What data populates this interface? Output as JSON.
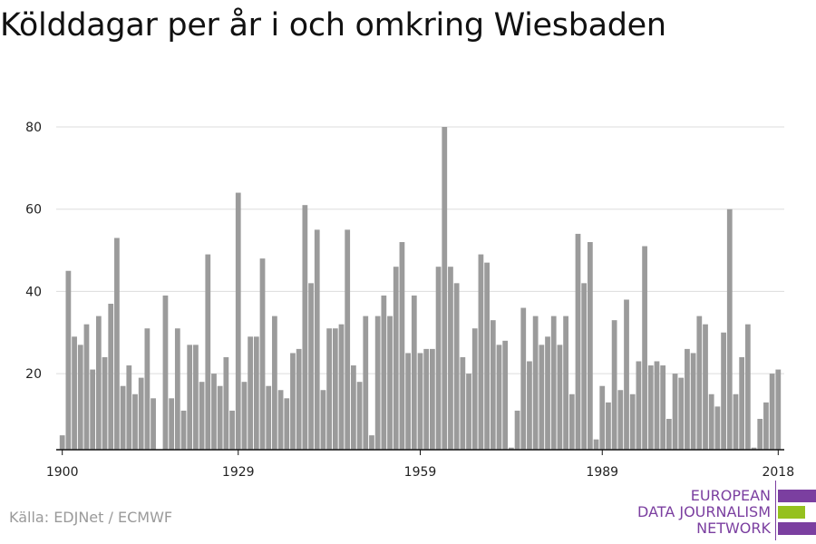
{
  "title": "Kölddagar per år i och omkring Wiesbaden",
  "source": "Källa: EDJNet / ECMWF",
  "logo": {
    "lines": [
      "EUROPEAN",
      "DATA JOURNALISM",
      "NETWORK"
    ],
    "colors": {
      "purple": "#7b3fa0",
      "green": "#95c11f"
    }
  },
  "chart_data": {
    "type": "bar",
    "title": "Kölddagar per år i och omkring Wiesbaden",
    "xlabel": "",
    "ylabel": "",
    "bar_color": "#9b9b9b",
    "xlim": [
      1899,
      2019
    ],
    "ylim": [
      1.5,
      80
    ],
    "y_ticks": [
      20,
      40,
      60,
      80
    ],
    "x_ticks": [
      1900,
      1929,
      1959,
      1989,
      2018
    ],
    "grid": "horizontal",
    "legend": "none",
    "x": [
      1900,
      1901,
      1902,
      1903,
      1904,
      1905,
      1906,
      1907,
      1908,
      1909,
      1910,
      1911,
      1912,
      1913,
      1914,
      1915,
      1916,
      1917,
      1918,
      1919,
      1920,
      1921,
      1922,
      1923,
      1924,
      1925,
      1926,
      1927,
      1928,
      1929,
      1930,
      1931,
      1932,
      1933,
      1934,
      1935,
      1936,
      1937,
      1938,
      1939,
      1940,
      1941,
      1942,
      1943,
      1944,
      1945,
      1946,
      1947,
      1948,
      1949,
      1950,
      1951,
      1952,
      1953,
      1954,
      1955,
      1956,
      1957,
      1958,
      1959,
      1960,
      1961,
      1962,
      1963,
      1964,
      1965,
      1966,
      1967,
      1968,
      1969,
      1970,
      1971,
      1972,
      1973,
      1974,
      1975,
      1976,
      1977,
      1978,
      1979,
      1980,
      1981,
      1982,
      1983,
      1984,
      1985,
      1986,
      1987,
      1988,
      1989,
      1990,
      1991,
      1992,
      1993,
      1994,
      1995,
      1996,
      1997,
      1998,
      1999,
      2000,
      2001,
      2002,
      2003,
      2004,
      2005,
      2006,
      2007,
      2008,
      2009,
      2010,
      2011,
      2012,
      2013,
      2014,
      2015,
      2016,
      2017,
      2018
    ],
    "values": [
      5,
      45,
      29,
      27,
      32,
      21,
      34,
      24,
      37,
      53,
      17,
      22,
      15,
      19,
      31,
      14,
      0,
      39,
      14,
      31,
      11,
      27,
      27,
      18,
      49,
      20,
      17,
      24,
      11,
      64,
      18,
      29,
      29,
      48,
      17,
      34,
      16,
      14,
      25,
      26,
      61,
      42,
      55,
      16,
      31,
      31,
      32,
      55,
      22,
      18,
      34,
      5,
      34,
      39,
      34,
      46,
      52,
      25,
      39,
      25,
      26,
      26,
      46,
      80,
      46,
      42,
      24,
      20,
      31,
      49,
      47,
      33,
      27,
      28,
      2,
      11,
      36,
      23,
      34,
      27,
      29,
      34,
      27,
      34,
      15,
      54,
      42,
      52,
      4,
      17,
      13,
      33,
      16,
      38,
      15,
      23,
      51,
      22,
      23,
      22,
      9,
      20,
      19,
      26,
      25,
      34,
      32,
      15,
      12,
      30,
      60,
      15,
      24,
      32,
      2,
      9,
      13,
      20,
      21
    ]
  }
}
